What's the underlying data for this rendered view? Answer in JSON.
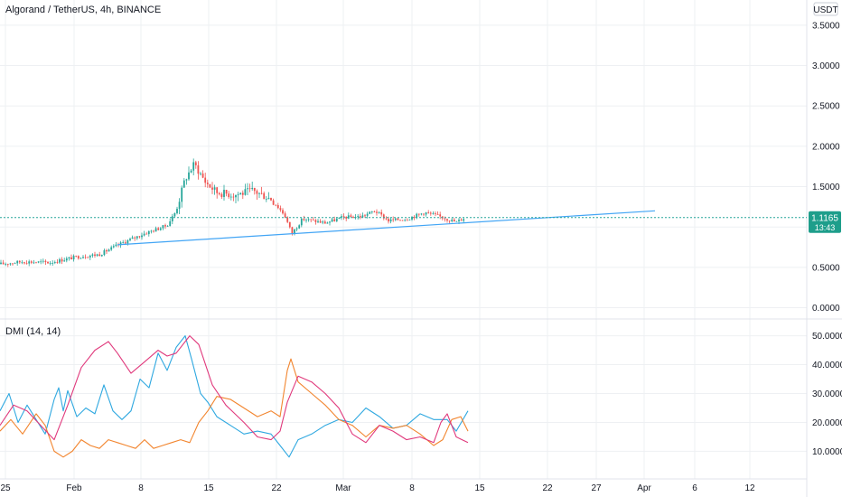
{
  "header": {
    "symbol_title": "Algorand / TetherUS, 4h, BINANCE",
    "currency_button": "USDT"
  },
  "price_tag": {
    "value": "1.1165",
    "countdown": "13:43"
  },
  "indicator": {
    "label": "DMI (14, 14)"
  },
  "colors": {
    "up": "#26a69a",
    "down": "#ef5350",
    "trendline": "#42a5f5",
    "plus_di": "#2fa8e0",
    "minus_di": "#f2852e",
    "adx": "#e0397c",
    "grid": "#eef0f3",
    "price_tag_bg": "#1e9e8b"
  },
  "chart_data": [
    {
      "type": "candlestick",
      "title": "Algorand / TetherUS, 4h, BINANCE",
      "x_ticks": [
        "25",
        "Feb",
        "8",
        "15",
        "22",
        "Mar",
        "8",
        "15",
        "22",
        "27",
        "Apr",
        "6",
        "12"
      ],
      "y_ticks": [
        "3.5000",
        "3.0000",
        "2.5000",
        "2.0000",
        "1.5000",
        "1.0000",
        "0.5000",
        "0.0000"
      ],
      "ylim": [
        -0.05,
        3.7
      ],
      "price_path": [
        [
          0,
          0.54
        ],
        [
          25,
          0.57
        ],
        [
          55,
          0.56
        ],
        [
          85,
          0.63
        ],
        [
          110,
          0.66
        ],
        [
          135,
          0.8
        ],
        [
          160,
          0.92
        ],
        [
          185,
          1.02
        ],
        [
          195,
          1.2
        ],
        [
          205,
          1.6
        ],
        [
          215,
          1.78
        ],
        [
          228,
          1.55
        ],
        [
          240,
          1.43
        ],
        [
          260,
          1.4
        ],
        [
          280,
          1.45
        ],
        [
          300,
          1.35
        ],
        [
          315,
          1.15
        ],
        [
          323,
          0.92
        ],
        [
          335,
          1.1
        ],
        [
          360,
          1.05
        ],
        [
          380,
          1.12
        ],
        [
          400,
          1.13
        ],
        [
          415,
          1.2
        ],
        [
          430,
          1.08
        ],
        [
          450,
          1.1
        ],
        [
          470,
          1.18
        ],
        [
          490,
          1.12
        ],
        [
          505,
          1.06
        ],
        [
          515,
          1.12
        ]
      ],
      "trendline": {
        "from": [
          130,
          0.78
        ],
        "to": [
          725,
          1.2
        ]
      },
      "last_price": 1.1165
    },
    {
      "type": "line",
      "title": "DMI (14, 14)",
      "y_ticks": [
        "50.0000",
        "40.0000",
        "30.0000",
        "20.0000",
        "10.0000"
      ],
      "ylim": [
        2,
        53
      ],
      "series": [
        {
          "values": [
            [
              0,
              24
            ],
            [
              10,
              30
            ],
            [
              20,
              20
            ],
            [
              30,
              26
            ],
            [
              40,
              21
            ],
            [
              50,
              16
            ],
            [
              60,
              28
            ],
            [
              65,
              32
            ],
            [
              70,
              24
            ],
            [
              75,
              31
            ],
            [
              85,
              22
            ],
            [
              95,
              25
            ],
            [
              105,
              23
            ],
            [
              115,
              33
            ],
            [
              125,
              24
            ],
            [
              135,
              21
            ],
            [
              145,
              24
            ],
            [
              155,
              35
            ],
            [
              165,
              32
            ],
            [
              175,
              44
            ],
            [
              185,
              38
            ],
            [
              195,
              46
            ],
            [
              205,
              50
            ],
            [
              212,
              42
            ],
            [
              222,
              30
            ],
            [
              230,
              27
            ],
            [
              240,
              22
            ],
            [
              255,
              19
            ],
            [
              270,
              16
            ],
            [
              285,
              17
            ],
            [
              300,
              16
            ],
            [
              310,
              12
            ],
            [
              320,
              8
            ],
            [
              330,
              14
            ],
            [
              345,
              16
            ],
            [
              360,
              19
            ],
            [
              375,
              21
            ],
            [
              390,
              20
            ],
            [
              405,
              25
            ],
            [
              420,
              22
            ],
            [
              435,
              18
            ],
            [
              450,
              19
            ],
            [
              465,
              23
            ],
            [
              480,
              21
            ],
            [
              495,
              21
            ],
            [
              505,
              17
            ],
            [
              518,
              24
            ]
          ]
        },
        {
          "values": [
            [
              0,
              17
            ],
            [
              12,
              21
            ],
            [
              25,
              16
            ],
            [
              40,
              23
            ],
            [
              50,
              19
            ],
            [
              60,
              10
            ],
            [
              70,
              8
            ],
            [
              80,
              10
            ],
            [
              90,
              14
            ],
            [
              100,
              12
            ],
            [
              110,
              11
            ],
            [
              120,
              14
            ],
            [
              130,
              13
            ],
            [
              140,
              12
            ],
            [
              150,
              11
            ],
            [
              160,
              14
            ],
            [
              170,
              11
            ],
            [
              180,
              12
            ],
            [
              190,
              13
            ],
            [
              200,
              14
            ],
            [
              210,
              13
            ],
            [
              220,
              20
            ],
            [
              230,
              24
            ],
            [
              240,
              29
            ],
            [
              255,
              28
            ],
            [
              270,
              25
            ],
            [
              285,
              22
            ],
            [
              300,
              24
            ],
            [
              310,
              22
            ],
            [
              318,
              38
            ],
            [
              322,
              42
            ],
            [
              330,
              34
            ],
            [
              345,
              30
            ],
            [
              360,
              26
            ],
            [
              375,
              21
            ],
            [
              390,
              19
            ],
            [
              405,
              15
            ],
            [
              420,
              19
            ],
            [
              435,
              18
            ],
            [
              450,
              19
            ],
            [
              465,
              16
            ],
            [
              480,
              12
            ],
            [
              490,
              14
            ],
            [
              500,
              21
            ],
            [
              510,
              22
            ],
            [
              518,
              17
            ]
          ]
        },
        {
          "values": [
            [
              0,
              19
            ],
            [
              15,
              26
            ],
            [
              30,
              24
            ],
            [
              45,
              19
            ],
            [
              60,
              14
            ],
            [
              75,
              26
            ],
            [
              90,
              39
            ],
            [
              105,
              45
            ],
            [
              120,
              48
            ],
            [
              130,
              44
            ],
            [
              145,
              37
            ],
            [
              160,
              41
            ],
            [
              175,
              45
            ],
            [
              185,
              43
            ],
            [
              195,
              44
            ],
            [
              210,
              50
            ],
            [
              220,
              47
            ],
            [
              235,
              33
            ],
            [
              250,
              26
            ],
            [
              270,
              20
            ],
            [
              285,
              15
            ],
            [
              300,
              14
            ],
            [
              310,
              17
            ],
            [
              318,
              27
            ],
            [
              330,
              36
            ],
            [
              345,
              34
            ],
            [
              360,
              30
            ],
            [
              375,
              25
            ],
            [
              390,
              16
            ],
            [
              405,
              13
            ],
            [
              420,
              19
            ],
            [
              435,
              17
            ],
            [
              450,
              14
            ],
            [
              465,
              15
            ],
            [
              480,
              13
            ],
            [
              488,
              20
            ],
            [
              495,
              23
            ],
            [
              505,
              15
            ],
            [
              518,
              13
            ]
          ]
        }
      ]
    }
  ]
}
